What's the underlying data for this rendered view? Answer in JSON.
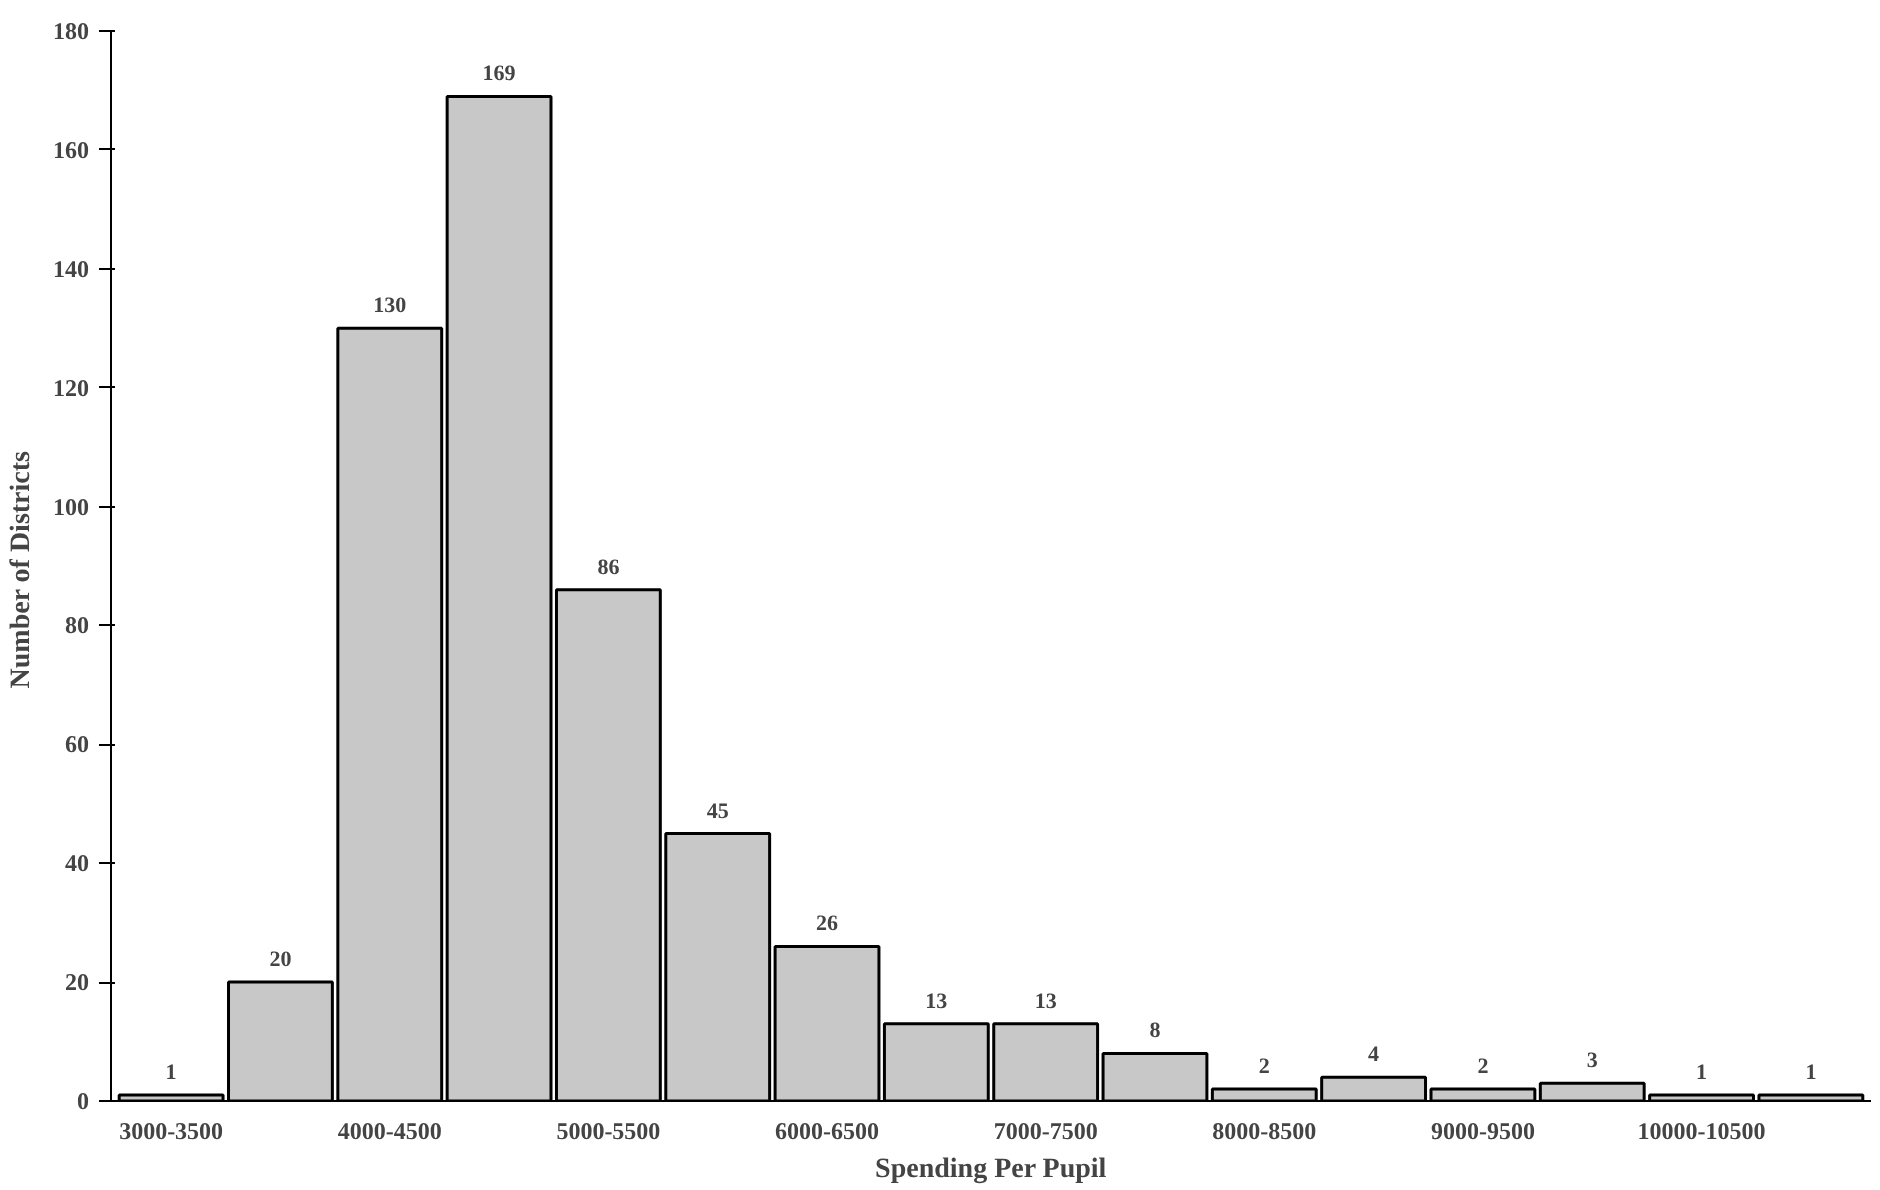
{
  "chart_data": {
    "type": "bar",
    "xlabel": "Spending Per Pupil",
    "ylabel": "Number  of Districts",
    "categories": [
      "3000-3500",
      null,
      "4000-4500",
      null,
      "5000-5500",
      null,
      "6000-6500",
      null,
      "7000-7500",
      null,
      "8000-8500",
      null,
      "9000-9500",
      null,
      "10000-10500",
      null
    ],
    "values": [
      1,
      20,
      130,
      169,
      86,
      45,
      26,
      13,
      13,
      8,
      2,
      4,
      2,
      3,
      1,
      1
    ],
    "color": "#c8c8c8",
    "ylim": [
      0,
      180
    ],
    "yticks": [
      0,
      20,
      40,
      60,
      80,
      100,
      120,
      140,
      160,
      180
    ],
    "grid": false,
    "data_labels": true
  }
}
